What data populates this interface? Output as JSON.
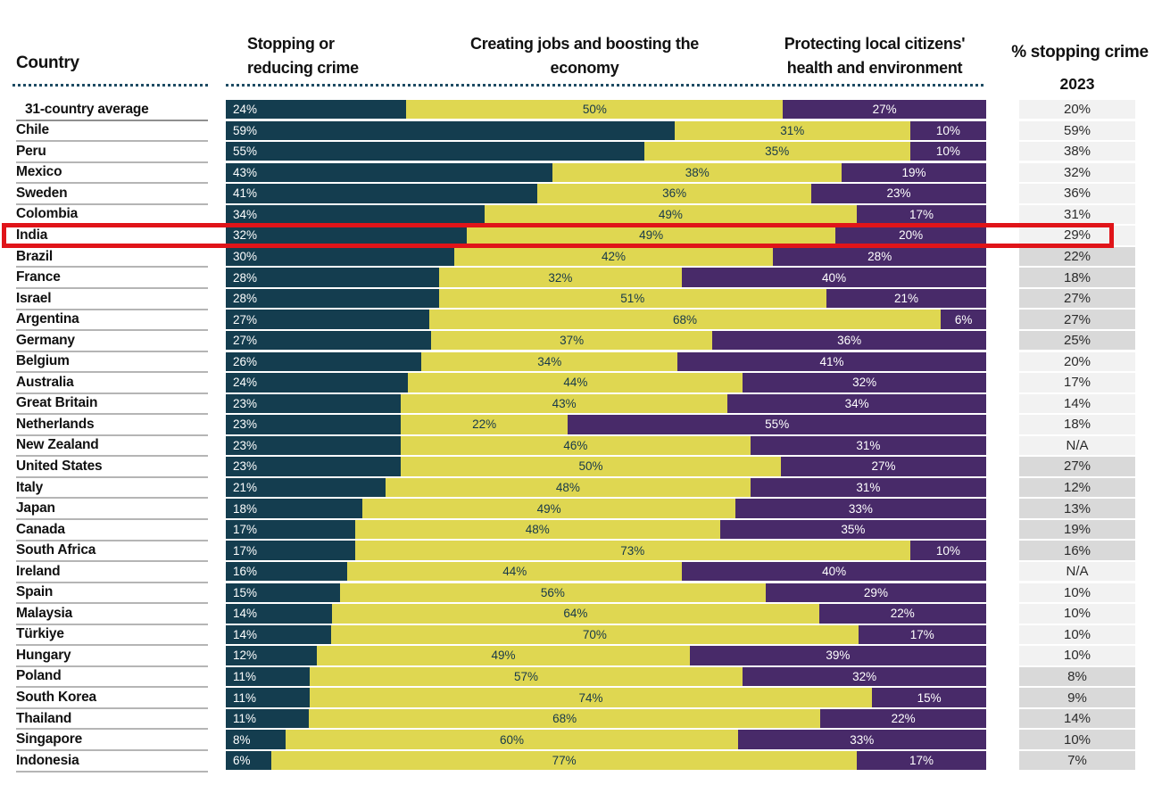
{
  "header": {
    "country_label": "Country",
    "cols": [
      {
        "line1": "Stopping or",
        "line2": "reducing crime"
      },
      {
        "line1": "Creating jobs and boosting the",
        "line2": "economy"
      },
      {
        "line1": "Protecting local citizens'",
        "line2": "health and environment"
      }
    ],
    "right_title": "% stopping crime",
    "right_year": "2023"
  },
  "colors": {
    "segment_stopping_crime": "#143d4f",
    "segment_jobs_economy": "#dfd751",
    "segment_health_environment": "#482a69",
    "value_cell_light": "#f2f2f2",
    "value_cell_shaded": "#d9d9d9",
    "highlight_red": "#e01419",
    "dotted_rule": "#1e4b63",
    "row_separator": "#b5b5b5"
  },
  "chart_data": {
    "type": "bar",
    "stacked": true,
    "orientation": "horizontal",
    "unit": "%",
    "segments": [
      "Stopping or reducing crime",
      "Creating jobs and boosting the economy",
      "Protecting local citizens' health and environment"
    ],
    "extra_column": "% stopping crime 2023",
    "highlighted_country": "India",
    "rows": [
      {
        "country": "31-country average",
        "values": [
          24,
          50,
          27
        ],
        "labels": [
          "24%",
          "50%",
          "27%"
        ],
        "y2023": "20%",
        "shaded": false,
        "highlighted": false,
        "indent": true
      },
      {
        "country": "Chile",
        "values": [
          59,
          31,
          10
        ],
        "labels": [
          "59%",
          "31%",
          "10%"
        ],
        "y2023": "59%",
        "shaded": false,
        "highlighted": false,
        "indent": false
      },
      {
        "country": "Peru",
        "values": [
          55,
          35,
          10
        ],
        "labels": [
          "55%",
          "35%",
          "10%"
        ],
        "y2023": "38%",
        "shaded": false,
        "highlighted": false,
        "indent": false
      },
      {
        "country": "Mexico",
        "values": [
          43,
          38,
          19
        ],
        "labels": [
          "43%",
          "38%",
          "19%"
        ],
        "y2023": "32%",
        "shaded": false,
        "highlighted": false,
        "indent": false
      },
      {
        "country": "Sweden",
        "values": [
          41,
          36,
          23
        ],
        "labels": [
          "41%",
          "36%",
          "23%"
        ],
        "y2023": "36%",
        "shaded": false,
        "highlighted": false,
        "indent": false
      },
      {
        "country": "Colombia",
        "values": [
          34,
          49,
          17
        ],
        "labels": [
          "34%",
          "49%",
          "17%"
        ],
        "y2023": "31%",
        "shaded": false,
        "highlighted": false,
        "indent": false
      },
      {
        "country": "India",
        "values": [
          32,
          49,
          20
        ],
        "labels": [
          "32%",
          "49%",
          "20%"
        ],
        "y2023": "29%",
        "shaded": false,
        "highlighted": true,
        "indent": false
      },
      {
        "country": "Brazil",
        "values": [
          30,
          42,
          28
        ],
        "labels": [
          "30%",
          "42%",
          "28%"
        ],
        "y2023": "22%",
        "shaded": true,
        "highlighted": false,
        "indent": false
      },
      {
        "country": "France",
        "values": [
          28,
          32,
          40
        ],
        "labels": [
          "28%",
          "32%",
          "40%"
        ],
        "y2023": "18%",
        "shaded": true,
        "highlighted": false,
        "indent": false
      },
      {
        "country": "Israel",
        "values": [
          28,
          51,
          21
        ],
        "labels": [
          "28%",
          "51%",
          "21%"
        ],
        "y2023": "27%",
        "shaded": true,
        "highlighted": false,
        "indent": false
      },
      {
        "country": "Argentina",
        "values": [
          27,
          68,
          6
        ],
        "labels": [
          "27%",
          "68%",
          "6%"
        ],
        "y2023": "27%",
        "shaded": true,
        "highlighted": false,
        "indent": false
      },
      {
        "country": "Germany",
        "values": [
          27,
          37,
          36
        ],
        "labels": [
          "27%",
          "37%",
          "36%"
        ],
        "y2023": "25%",
        "shaded": true,
        "highlighted": false,
        "indent": false
      },
      {
        "country": "Belgium",
        "values": [
          26,
          34,
          41
        ],
        "labels": [
          "26%",
          "34%",
          "41%"
        ],
        "y2023": "20%",
        "shaded": false,
        "highlighted": false,
        "indent": false
      },
      {
        "country": "Australia",
        "values": [
          24,
          44,
          32
        ],
        "labels": [
          "24%",
          "44%",
          "32%"
        ],
        "y2023": "17%",
        "shaded": false,
        "highlighted": false,
        "indent": false
      },
      {
        "country": "Great Britain",
        "values": [
          23,
          43,
          34
        ],
        "labels": [
          "23%",
          "43%",
          "34%"
        ],
        "y2023": "14%",
        "shaded": false,
        "highlighted": false,
        "indent": false
      },
      {
        "country": "Netherlands",
        "values": [
          23,
          22,
          55
        ],
        "labels": [
          "23%",
          "22%",
          "55%"
        ],
        "y2023": "18%",
        "shaded": false,
        "highlighted": false,
        "indent": false
      },
      {
        "country": "New Zealand",
        "values": [
          23,
          46,
          31
        ],
        "labels": [
          "23%",
          "46%",
          "31%"
        ],
        "y2023": "N/A",
        "shaded": false,
        "highlighted": false,
        "indent": false
      },
      {
        "country": "United States",
        "values": [
          23,
          50,
          27
        ],
        "labels": [
          "23%",
          "50%",
          "27%"
        ],
        "y2023": "27%",
        "shaded": true,
        "highlighted": false,
        "indent": false
      },
      {
        "country": "Italy",
        "values": [
          21,
          48,
          31
        ],
        "labels": [
          "21%",
          "48%",
          "31%"
        ],
        "y2023": "12%",
        "shaded": true,
        "highlighted": false,
        "indent": false
      },
      {
        "country": "Japan",
        "values": [
          18,
          49,
          33
        ],
        "labels": [
          "18%",
          "49%",
          "33%"
        ],
        "y2023": "13%",
        "shaded": true,
        "highlighted": false,
        "indent": false
      },
      {
        "country": "Canada",
        "values": [
          17,
          48,
          35
        ],
        "labels": [
          "17%",
          "48%",
          "35%"
        ],
        "y2023": "19%",
        "shaded": true,
        "highlighted": false,
        "indent": false
      },
      {
        "country": "South Africa",
        "values": [
          17,
          73,
          10
        ],
        "labels": [
          "17%",
          "73%",
          "10%"
        ],
        "y2023": "16%",
        "shaded": true,
        "highlighted": false,
        "indent": false
      },
      {
        "country": "Ireland",
        "values": [
          16,
          44,
          40
        ],
        "labels": [
          "16%",
          "44%",
          "40%"
        ],
        "y2023": "N/A",
        "shaded": false,
        "highlighted": false,
        "indent": false
      },
      {
        "country": "Spain",
        "values": [
          15,
          56,
          29
        ],
        "labels": [
          "15%",
          "56%",
          "29%"
        ],
        "y2023": "10%",
        "shaded": false,
        "highlighted": false,
        "indent": false
      },
      {
        "country": "Malaysia",
        "values": [
          14,
          64,
          22
        ],
        "labels": [
          "14%",
          "64%",
          "22%"
        ],
        "y2023": "10%",
        "shaded": false,
        "highlighted": false,
        "indent": false
      },
      {
        "country": "Türkiye",
        "values": [
          14,
          70,
          17
        ],
        "labels": [
          "14%",
          "70%",
          "17%"
        ],
        "y2023": "10%",
        "shaded": false,
        "highlighted": false,
        "indent": false
      },
      {
        "country": "Hungary",
        "values": [
          12,
          49,
          39
        ],
        "labels": [
          "12%",
          "49%",
          "39%"
        ],
        "y2023": "10%",
        "shaded": false,
        "highlighted": false,
        "indent": false
      },
      {
        "country": "Poland",
        "values": [
          11,
          57,
          32
        ],
        "labels": [
          "11%",
          "57%",
          "32%"
        ],
        "y2023": "8%",
        "shaded": true,
        "highlighted": false,
        "indent": false
      },
      {
        "country": "South Korea",
        "values": [
          11,
          74,
          15
        ],
        "labels": [
          "11%",
          "74%",
          "15%"
        ],
        "y2023": "9%",
        "shaded": true,
        "highlighted": false,
        "indent": false
      },
      {
        "country": "Thailand",
        "values": [
          11,
          68,
          22
        ],
        "labels": [
          "11%",
          "68%",
          "22%"
        ],
        "y2023": "14%",
        "shaded": true,
        "highlighted": false,
        "indent": false
      },
      {
        "country": "Singapore",
        "values": [
          8,
          60,
          33
        ],
        "labels": [
          "8%",
          "60%",
          "33%"
        ],
        "y2023": "10%",
        "shaded": true,
        "highlighted": false,
        "indent": false
      },
      {
        "country": "Indonesia",
        "values": [
          6,
          77,
          17
        ],
        "labels": [
          "6%",
          "77%",
          "17%"
        ],
        "y2023": "7%",
        "shaded": true,
        "highlighted": false,
        "indent": false
      }
    ]
  }
}
